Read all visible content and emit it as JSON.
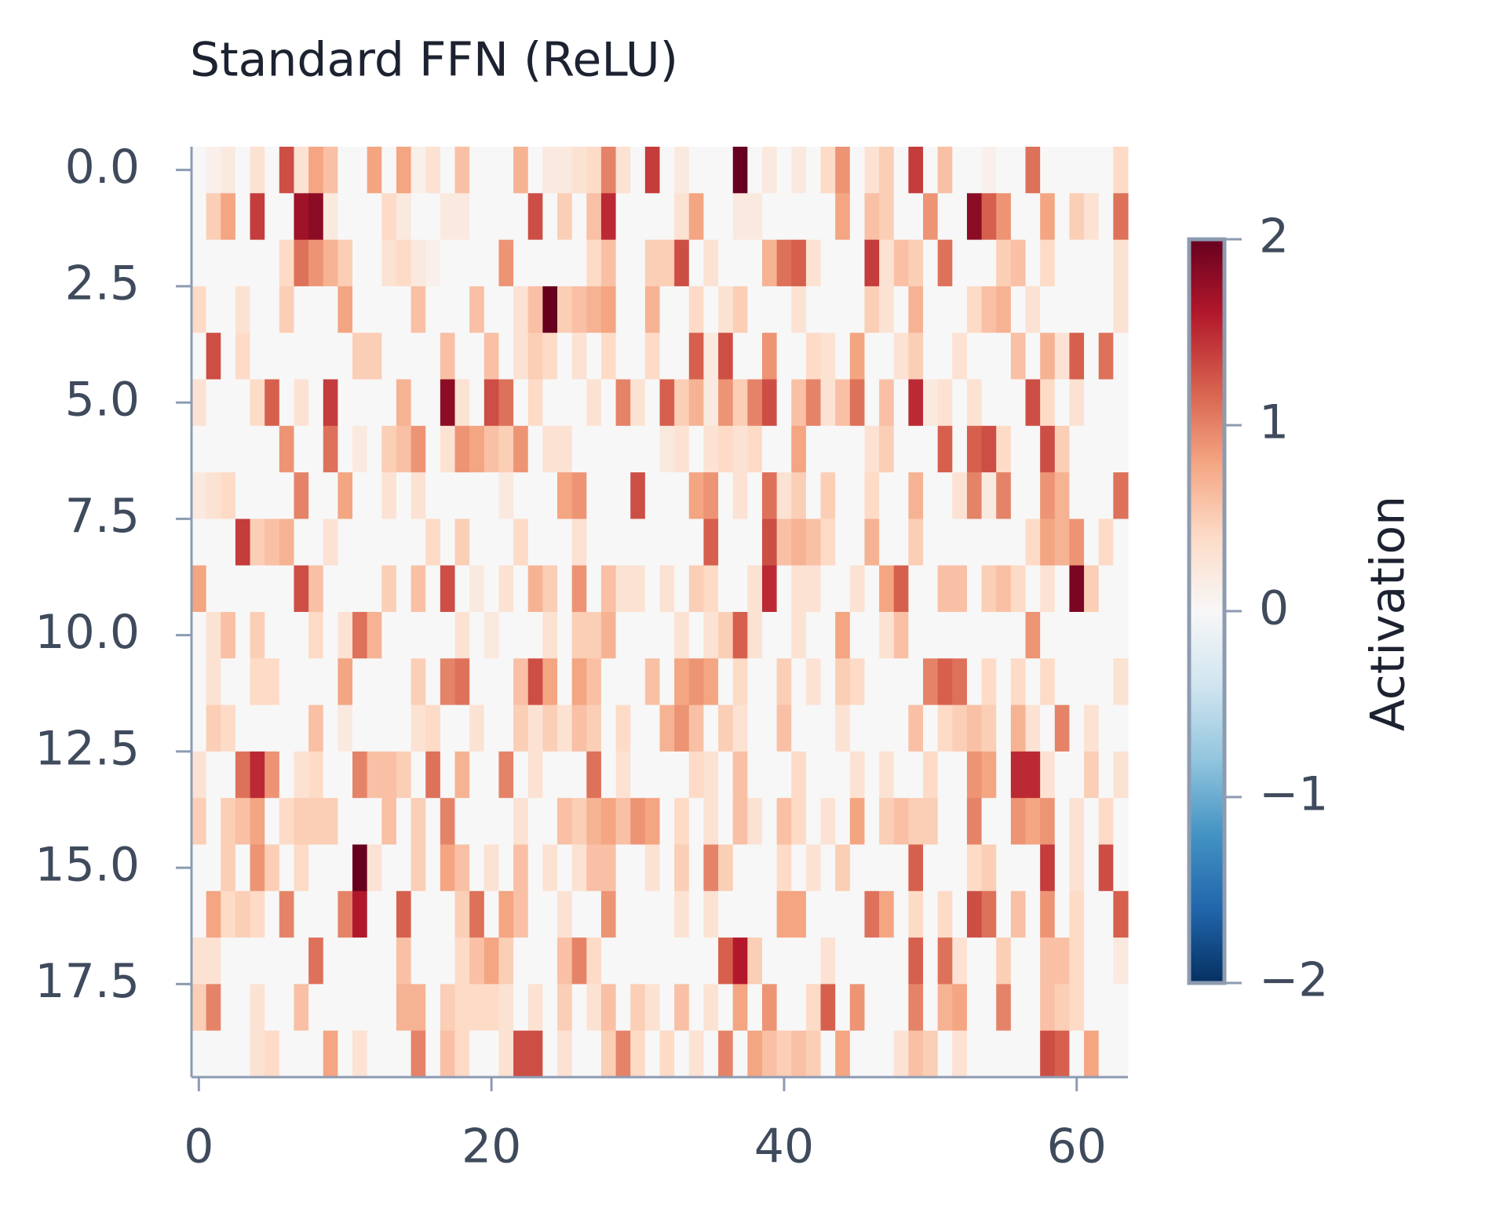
{
  "chart_data": {
    "type": "heatmap",
    "title": "Standard FFN (ReLU)",
    "xlim": [
      -0.5,
      63.5
    ],
    "ylim": [
      -0.5,
      19.5
    ],
    "invert_y": true,
    "xticks": [
      0,
      20,
      40,
      60
    ],
    "yticks": [
      {
        "value": 0,
        "label": "0.0"
      },
      2.5,
      {
        "value": 5,
        "label": "5.0"
      },
      7.5,
      {
        "value": 10,
        "label": "10.0"
      },
      12.5,
      {
        "value": 15,
        "label": "15.0"
      },
      17.5
    ],
    "colormap": "RdBu_r",
    "clim": [
      -2,
      2
    ],
    "colorbar_label": "Activation",
    "colorbar_ticks": [
      2,
      1,
      0,
      {
        "value": -1,
        "label": "−1"
      },
      {
        "value": -2,
        "label": "−2"
      }
    ],
    "z": [
      [
        0,
        0.1,
        0.2,
        0,
        0.3,
        0,
        1.3,
        0.3,
        0.8,
        0.6,
        0,
        0,
        0.8,
        0,
        0.8,
        0.1,
        0.3,
        0,
        0.6,
        0,
        0,
        0,
        0.7,
        0,
        0.2,
        0.2,
        0.3,
        0.4,
        1.0,
        0.3,
        0,
        1.4,
        0,
        0.2,
        0,
        0,
        0,
        2.0,
        0,
        0.2,
        0,
        0.2,
        0,
        0.4,
        0.9,
        0,
        0.3,
        0.5,
        0,
        1.4,
        0,
        0.6,
        0,
        0,
        0.1,
        0,
        0,
        1.1,
        0,
        0,
        0,
        0,
        0,
        0.4
      ],
      [
        0,
        0.5,
        0.8,
        0,
        1.4,
        0,
        0,
        1.7,
        1.8,
        0.2,
        0,
        0,
        0,
        0.4,
        0.2,
        0,
        0,
        0.2,
        0.2,
        0,
        0,
        0,
        0,
        1.3,
        0,
        0.5,
        0,
        0.6,
        1.5,
        0,
        0,
        0,
        0,
        0.3,
        0.8,
        0,
        0,
        0.2,
        0.2,
        0,
        0,
        0,
        0,
        0,
        0.8,
        0,
        0.6,
        0.5,
        0,
        0,
        0.9,
        0,
        0,
        1.8,
        1.2,
        0.9,
        0,
        0,
        0.8,
        0,
        0.5,
        0.3,
        0,
        1.1
      ],
      [
        0,
        0,
        0,
        0,
        0,
        0,
        0.4,
        1.1,
        0.9,
        0.7,
        0.5,
        0,
        0,
        0.3,
        0.4,
        0.2,
        0.1,
        0,
        0,
        0,
        0,
        0.9,
        0,
        0,
        0,
        0,
        0,
        0.4,
        0.6,
        0,
        0,
        0.5,
        0.5,
        1.3,
        0,
        0.3,
        0,
        0,
        0,
        0.7,
        1.1,
        1.2,
        0.3,
        0,
        0,
        0,
        1.4,
        0.3,
        0.6,
        0.5,
        0,
        1.1,
        0,
        0,
        0,
        0.5,
        0.6,
        0,
        0.4,
        0,
        0,
        0,
        0,
        0.3
      ],
      [
        0.4,
        0,
        0,
        0.3,
        0,
        0,
        0.5,
        0,
        0,
        0,
        0.8,
        0,
        0,
        0,
        0,
        0.6,
        0,
        0,
        0,
        0.6,
        0,
        0,
        0.3,
        0.6,
        2.0,
        0.5,
        0.6,
        0.7,
        0.8,
        0,
        0,
        0.7,
        0,
        0,
        0.4,
        0,
        0.3,
        0.5,
        0,
        0,
        0,
        0.3,
        0,
        0,
        0,
        0,
        0.5,
        0.3,
        0,
        0.7,
        0,
        0,
        0,
        0.4,
        0.6,
        0.7,
        0,
        0.3,
        0,
        0,
        0,
        0,
        0,
        0.3
      ],
      [
        0,
        1.3,
        0,
        0.4,
        0,
        0,
        0,
        0,
        0,
        0,
        0,
        0.5,
        0.5,
        0,
        0,
        0,
        0,
        0.6,
        0,
        0,
        0.6,
        0,
        0.3,
        0.5,
        0.4,
        0,
        0.3,
        0,
        0.4,
        0,
        0,
        0.4,
        0,
        0,
        1.2,
        0.2,
        1.3,
        0,
        0,
        0.9,
        0,
        0,
        0.4,
        0.3,
        0,
        0.8,
        0,
        0,
        0.3,
        0.5,
        0,
        0,
        0.3,
        0,
        0,
        0,
        0.6,
        0,
        0.7,
        0.3,
        1.2,
        0,
        1.1,
        0
      ],
      [
        0.3,
        0,
        0,
        0,
        0.4,
        1.2,
        0,
        0.3,
        0,
        1.4,
        0,
        0,
        0,
        0,
        0.7,
        0,
        0,
        1.8,
        0.3,
        0,
        1.3,
        1.1,
        0,
        0.4,
        0,
        0,
        0,
        0.3,
        0,
        1.0,
        0.3,
        0,
        1.2,
        0.5,
        0.7,
        0.2,
        0.9,
        0.5,
        1.0,
        1.3,
        0,
        0.6,
        1.0,
        0.3,
        0.6,
        1.1,
        0,
        0.6,
        0,
        1.5,
        0.2,
        0.3,
        0,
        0.3,
        0,
        0,
        0,
        1.3,
        0.4,
        0,
        0.3,
        0,
        0,
        0
      ],
      [
        0,
        0,
        0,
        0,
        0,
        0,
        0.9,
        0,
        0,
        1.1,
        0,
        0.2,
        0,
        0.5,
        0.6,
        0.9,
        0,
        0.3,
        0.9,
        0.8,
        0.6,
        0.5,
        0.9,
        0,
        0.3,
        0.3,
        0,
        0,
        0,
        0,
        0,
        0,
        0.2,
        0.3,
        0,
        0.3,
        0.4,
        0.3,
        0.4,
        0,
        0,
        0.8,
        0,
        0,
        0,
        0,
        0.3,
        0.5,
        0,
        0,
        0,
        1.2,
        0,
        1.2,
        1.3,
        0.4,
        0,
        0,
        1.3,
        0.5,
        0,
        0,
        0,
        0
      ],
      [
        0.2,
        0.3,
        0.4,
        0,
        0,
        0,
        0,
        1.0,
        0,
        0,
        0.8,
        0,
        0,
        0.3,
        0,
        0.3,
        0,
        0,
        0,
        0,
        0,
        0.2,
        0,
        0,
        0,
        0.8,
        0.9,
        0,
        0,
        0,
        1.3,
        0,
        0,
        0,
        0.8,
        0.9,
        0,
        0.3,
        0,
        1.1,
        0.3,
        0.5,
        0,
        0.5,
        0,
        0,
        0.4,
        0,
        0,
        0.7,
        0,
        0,
        0.3,
        1.0,
        0.2,
        1.0,
        0,
        0,
        0.9,
        0.7,
        0,
        0,
        0,
        1.1
      ],
      [
        0,
        0,
        0,
        1.4,
        0.5,
        0.6,
        0.7,
        0,
        0,
        0.3,
        0,
        0,
        0,
        0,
        0,
        0,
        0.4,
        0,
        0.5,
        0,
        0,
        0,
        0.4,
        0,
        0,
        0,
        0.3,
        0,
        0,
        0,
        0,
        0,
        0,
        0,
        0,
        1.2,
        0,
        0,
        0,
        1.3,
        0.6,
        0.7,
        0.6,
        0.4,
        0,
        0,
        0.7,
        0,
        0,
        0.5,
        0,
        0,
        0,
        0,
        0,
        0,
        0,
        0.4,
        0.8,
        0.7,
        0.9,
        0,
        0.4,
        0
      ],
      [
        0.8,
        0,
        0,
        0,
        0,
        0,
        0,
        1.3,
        0.6,
        0,
        0,
        0,
        0,
        0.5,
        0,
        0.6,
        0,
        1.3,
        0,
        0.2,
        0,
        0.3,
        0,
        0.7,
        0.5,
        0,
        0.9,
        0,
        0.6,
        0.3,
        0.3,
        0,
        0.3,
        0,
        0.5,
        0.4,
        0,
        0,
        0.3,
        1.5,
        0,
        0.3,
        0.3,
        0,
        0,
        0.3,
        0,
        0.8,
        1.2,
        0,
        0,
        0.6,
        0.6,
        0,
        0.5,
        0.6,
        0.4,
        0,
        0.3,
        0,
        1.9,
        0.5,
        0,
        0
      ],
      [
        0,
        0.3,
        0.6,
        0,
        0.5,
        0,
        0,
        0,
        0.4,
        0,
        0.3,
        1.1,
        0.7,
        0,
        0,
        0,
        0,
        0,
        0.3,
        0,
        0.2,
        0,
        0,
        0,
        0.3,
        0,
        0.5,
        0.5,
        0.7,
        0,
        0,
        0,
        0,
        0.3,
        0,
        0.3,
        0.5,
        1.2,
        0.3,
        0,
        0,
        0.3,
        0,
        0,
        0.8,
        0,
        0,
        0.3,
        0.6,
        0,
        0,
        0,
        0,
        0,
        0,
        0,
        0,
        0.9,
        0,
        0,
        0,
        0,
        0,
        0
      ],
      [
        0,
        0.3,
        0,
        0,
        0.4,
        0.4,
        0,
        0,
        0,
        0,
        0.8,
        0,
        0,
        0,
        0,
        0.5,
        0,
        1.0,
        1.1,
        0,
        0,
        0,
        0.6,
        1.3,
        0.8,
        0,
        0.8,
        0.6,
        0,
        0,
        0,
        0.6,
        0,
        0.8,
        0.9,
        0.8,
        0,
        0.4,
        0,
        0,
        0.5,
        0,
        0.3,
        0,
        0.5,
        0.4,
        0,
        0,
        0,
        0,
        1.0,
        1.2,
        1.1,
        0,
        0.4,
        0,
        0.4,
        0,
        0.4,
        0,
        0,
        0,
        0,
        0.3
      ],
      [
        0,
        0.5,
        0.4,
        0,
        0,
        0,
        0,
        0,
        0.6,
        0,
        0.2,
        0,
        0,
        0,
        0,
        0.3,
        0.4,
        0,
        0,
        0.3,
        0,
        0,
        0.5,
        0.3,
        0.5,
        0.3,
        0.6,
        0.5,
        0,
        0.4,
        0,
        0,
        0.7,
        0.9,
        0.6,
        0,
        0.5,
        0.3,
        0,
        0,
        0.6,
        0,
        0,
        0,
        0.3,
        0,
        0,
        0,
        0,
        0.6,
        0,
        0.4,
        0.5,
        0.6,
        0.5,
        0,
        0.7,
        0.3,
        0,
        1.0,
        0,
        0.3,
        0,
        0
      ],
      [
        0.3,
        0,
        0,
        1.1,
        1.5,
        0.9,
        0,
        0.3,
        0.4,
        0,
        0,
        1.0,
        0.6,
        0.6,
        0.5,
        0,
        1.1,
        0,
        0.7,
        0,
        0,
        1.0,
        0,
        0.3,
        0,
        0,
        0,
        1.1,
        0,
        0.3,
        0,
        0,
        0,
        0,
        0.4,
        0.3,
        0,
        0.6,
        0,
        0,
        0,
        0.4,
        0,
        0,
        0,
        0.3,
        0,
        0.3,
        0,
        0,
        0.4,
        0,
        0,
        0.9,
        0.8,
        0,
        1.5,
        1.5,
        0.3,
        0,
        0,
        0.5,
        0,
        0.3
      ],
      [
        0.5,
        0,
        0.5,
        0.6,
        0.8,
        0,
        0.4,
        0.5,
        0.5,
        0.5,
        0,
        0,
        0,
        0.6,
        0,
        0.5,
        0,
        1.0,
        0,
        0,
        0,
        0,
        0.3,
        0,
        0,
        0.6,
        0.5,
        0.7,
        0.8,
        0.6,
        0.9,
        0.8,
        0,
        0.4,
        0,
        0.3,
        0,
        0.6,
        0.3,
        0,
        0.6,
        0.4,
        0,
        0.3,
        0,
        0.8,
        0,
        0.5,
        0.6,
        0.5,
        0.5,
        0,
        0,
        1.0,
        0,
        0,
        0.9,
        0.8,
        0.9,
        0,
        0.3,
        0,
        0.4,
        0
      ],
      [
        0,
        0,
        0.5,
        0,
        0.9,
        0.5,
        0,
        0.4,
        0,
        0,
        0,
        2.0,
        0.3,
        0,
        0,
        0.5,
        0,
        0.8,
        0.6,
        0,
        0.3,
        0,
        0.6,
        0,
        0.3,
        0,
        0.3,
        0.6,
        0.6,
        0,
        0,
        0.3,
        0,
        0.5,
        0,
        1.0,
        0.5,
        0,
        0,
        0,
        0.4,
        0,
        0.3,
        0,
        0.5,
        0,
        0,
        0,
        0,
        1.2,
        0,
        0,
        0,
        0.4,
        0.5,
        0,
        0,
        0,
        1.4,
        0,
        0.3,
        0,
        1.3,
        0
      ],
      [
        0,
        0.8,
        0.4,
        0.5,
        0.4,
        0,
        1.0,
        0,
        0,
        0,
        1.0,
        1.6,
        0,
        0,
        1.2,
        0,
        0,
        0,
        0.5,
        1.1,
        0,
        0.8,
        0.6,
        0,
        0,
        0.3,
        0,
        0,
        0.9,
        0,
        0,
        0,
        0,
        0.3,
        0,
        0.3,
        0,
        0,
        0,
        0,
        0.8,
        0.8,
        0,
        0,
        0,
        0,
        1.1,
        0.8,
        0,
        0.4,
        0,
        0.4,
        0,
        1.3,
        1.1,
        0,
        0.6,
        0,
        0.9,
        0,
        0.4,
        0,
        0,
        1.2
      ],
      [
        0.3,
        0.3,
        0,
        0,
        0,
        0,
        0,
        0,
        1.1,
        0,
        0,
        0,
        0,
        0,
        0.6,
        0,
        0,
        0,
        0.4,
        0.6,
        0.8,
        0.5,
        0,
        0,
        0,
        0.6,
        1.0,
        0.4,
        0,
        0,
        0,
        0,
        0,
        0,
        0,
        0,
        1.2,
        1.6,
        0.5,
        0,
        0,
        0,
        0,
        0.3,
        0,
        0,
        0,
        0,
        0,
        1.2,
        0,
        1.1,
        0.3,
        0,
        0,
        0.5,
        0,
        0,
        0.6,
        0.6,
        0.4,
        0,
        0,
        0.2
      ],
      [
        0.5,
        1.0,
        0,
        0,
        0.3,
        0,
        0,
        0.6,
        0,
        0,
        0,
        0,
        0,
        0,
        0.7,
        0.7,
        0,
        0.5,
        0.4,
        0.4,
        0.4,
        0.3,
        0,
        0.3,
        0,
        0.5,
        0,
        0.3,
        0.6,
        0,
        0.5,
        0.3,
        0,
        0.6,
        0,
        0.3,
        0,
        0.8,
        0,
        0.9,
        0,
        0,
        0.4,
        1.2,
        0,
        0.9,
        0,
        0,
        0,
        1.0,
        0,
        0.7,
        0.8,
        0,
        0,
        1.0,
        0,
        0,
        0.6,
        0.5,
        0.4,
        0,
        0,
        0
      ],
      [
        0,
        0,
        0,
        0,
        0.3,
        0.4,
        0,
        0,
        0,
        0.8,
        0,
        0.3,
        0,
        0,
        0,
        1.0,
        0,
        0.6,
        0.4,
        0,
        0,
        0.3,
        1.3,
        1.3,
        0,
        0.3,
        0,
        0,
        0.5,
        1.0,
        0.4,
        0,
        0.4,
        0,
        0.3,
        0,
        1.0,
        0,
        0.8,
        0.6,
        0.5,
        0.6,
        0.5,
        0,
        0.8,
        0,
        0,
        0,
        0.3,
        0.6,
        0.5,
        0,
        0.3,
        0,
        0,
        0,
        0,
        0,
        1.3,
        1.2,
        0,
        0.8,
        0,
        0
      ]
    ]
  }
}
